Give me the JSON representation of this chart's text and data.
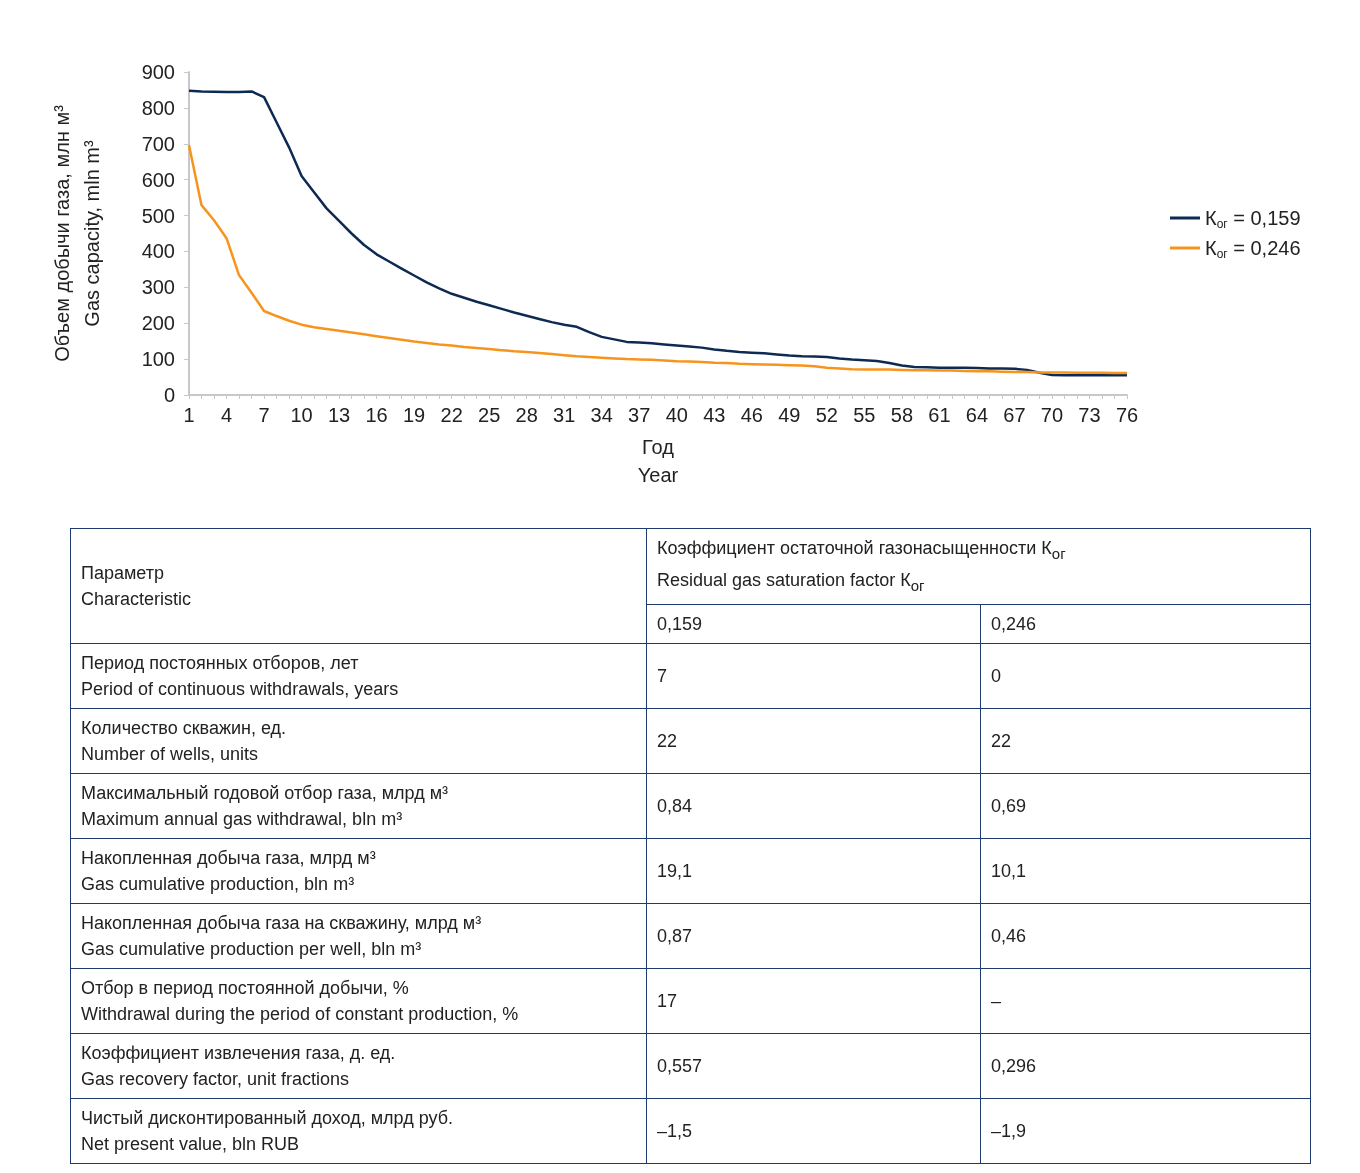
{
  "chart_data": [
    {
      "type": "line",
      "xlabel": "Год\nYear",
      "ylabel": "Объем добычи газа, млн м³\nGas capacity, mln m³",
      "categories": [
        "1",
        null,
        null,
        "4",
        null,
        null,
        "7",
        null,
        null,
        "10",
        null,
        null,
        "13",
        null,
        null,
        "16",
        null,
        null,
        "19",
        null,
        null,
        "22",
        null,
        null,
        "25",
        null,
        null,
        "28",
        null,
        null,
        "31",
        null,
        null,
        "34",
        null,
        null,
        "37",
        null,
        null,
        "40",
        null,
        null,
        "43",
        null,
        null,
        "46",
        null,
        null,
        "49",
        null,
        null,
        "52",
        null,
        null,
        "55",
        null,
        null,
        "58",
        null,
        null,
        "61",
        null,
        null,
        "64",
        null,
        null,
        "67",
        null,
        null,
        "70",
        null,
        null,
        "73",
        null,
        null,
        "76"
      ],
      "ylim": [
        0,
        900
      ],
      "yticks": [
        0,
        100,
        200,
        300,
        400,
        500,
        600,
        700,
        800,
        900
      ],
      "grid": false,
      "legend": "right",
      "marker": "none",
      "line_style": "solid",
      "series": [
        {
          "name": "К$_{ог}$ = 0,159",
          "color": "#0d2a52",
          "values": [
            848,
            846,
            845,
            844,
            844,
            846,
            830,
            760,
            690,
            610,
            565,
            520,
            485,
            450,
            418,
            392,
            372,
            352,
            333,
            314,
            297,
            282,
            271,
            260,
            250,
            240,
            230,
            221,
            212,
            203,
            196,
            190,
            175,
            162,
            155,
            148,
            146,
            144,
            141,
            138,
            135,
            132,
            127,
            123,
            120,
            118,
            116,
            113,
            110,
            108,
            107,
            106,
            102,
            99,
            97,
            95,
            89,
            82,
            78,
            77,
            76,
            76,
            76,
            75,
            74,
            74,
            73,
            70,
            62,
            56,
            55,
            55,
            55,
            55,
            55,
            55
          ]
        },
        {
          "name": "К$_{ог}$ = 0,246",
          "color": "#f7941d",
          "values": [
            696,
            529,
            487,
            437,
            334,
            285,
            234,
            220,
            207,
            196,
            189,
            184,
            179,
            174,
            169,
            164,
            159,
            154,
            149,
            145,
            141,
            138,
            134,
            131,
            128,
            125,
            122,
            120,
            117,
            114,
            111,
            108,
            106,
            104,
            102,
            100,
            99,
            98,
            96,
            94,
            93,
            92,
            90,
            89,
            87,
            86,
            85,
            84,
            83,
            82,
            80,
            76,
            74,
            72,
            71,
            71,
            71,
            70,
            69,
            69,
            68,
            68,
            67,
            66,
            66,
            65,
            64,
            64,
            63,
            63,
            63,
            62,
            62,
            62,
            61,
            61
          ]
        }
      ]
    },
    {
      "type": "other",
      "annotations": [
        "Параметр\nCharacteristic",
        "Коэффициент остаточной газонасыщенности К$_{ог}$\nResidual gas saturation factor К$_{ог}$",
        "0,159",
        "0,246",
        "Период постоянных отборов, лет\nPeriod of continuous withdrawals, years",
        "7",
        "0",
        "Количество скважин, ед.\nNumber of wells, units",
        "22",
        "22",
        "Максимальный годовой отбор газа, млрд м³\nMaximum annual gas withdrawal, bln m³",
        "0,84",
        "0,69",
        "Накопленная добыча газа, млрд м³\nGas cumulative production, bln m³",
        "19,1",
        "10,1",
        "Накопленная добыча газа на скважину, млрд м³\nGas cumulative production per well, bln m³",
        "0,87",
        "0,46",
        "Отбор в период постоянной добычи, %\nWithdrawal during the period of constant production, %",
        "17",
        "–",
        "Коэффициент извлечения газа, д. ед.\nGas recovery factor, unit fractions",
        "0,557",
        "0,296",
        "Чистый дисконтированный доход, млрд руб.\nNet present value, bln RUB",
        "–1,5",
        "–1,9"
      ]
    }
  ]
}
